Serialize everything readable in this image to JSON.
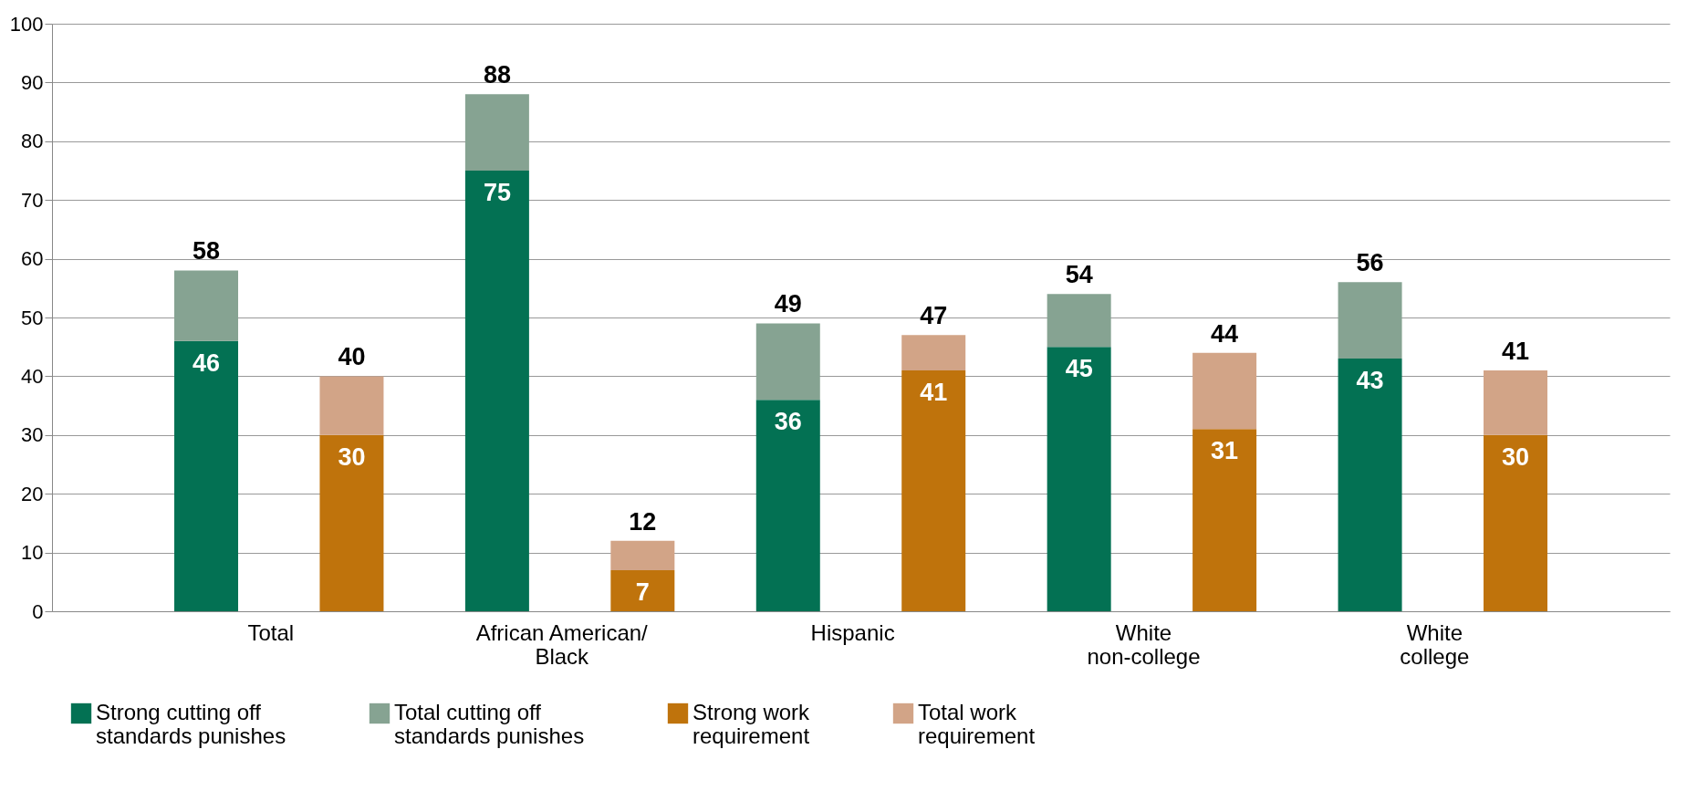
{
  "chart_data": {
    "type": "bar",
    "stacked": true,
    "categories": [
      "Total",
      null,
      "African American/ Black",
      null,
      "Hispanic",
      null,
      "White non-college",
      null,
      "White college",
      null
    ],
    "series": [
      {
        "name": "Strong cutting off standards punishes",
        "color": "#037153",
        "values": [
          46,
          null,
          75,
          null,
          36,
          null,
          45,
          null,
          43,
          null
        ],
        "value_labels": [
          "46",
          null,
          "75",
          null,
          "36",
          null,
          "45",
          null,
          "43",
          null
        ]
      },
      {
        "name": "Total cutting off standards punishes",
        "color": "#86a392",
        "values": [
          12,
          null,
          13,
          null,
          13,
          null,
          9,
          null,
          13,
          null
        ]
      },
      {
        "name": "Strong work requirement",
        "color": "#bf730c",
        "values": [
          null,
          30,
          null,
          7,
          null,
          41,
          null,
          31,
          null,
          30
        ],
        "value_labels": [
          null,
          "30",
          null,
          "7",
          null,
          "41",
          null,
          "31",
          null,
          "30"
        ]
      },
      {
        "name": "Total work requirement",
        "color": "#d2a487",
        "values": [
          null,
          10,
          null,
          5,
          null,
          6,
          null,
          13,
          null,
          11
        ]
      }
    ],
    "totals": [
      "58",
      "40",
      "88",
      "12",
      "49",
      "47",
      "54",
      "44",
      "56",
      "41"
    ],
    "ylim": [
      0,
      100
    ],
    "yticks": [
      0,
      10,
      20,
      30,
      40,
      50,
      60,
      70,
      80,
      90,
      100
    ],
    "grid": "y",
    "legend": "bottom"
  }
}
